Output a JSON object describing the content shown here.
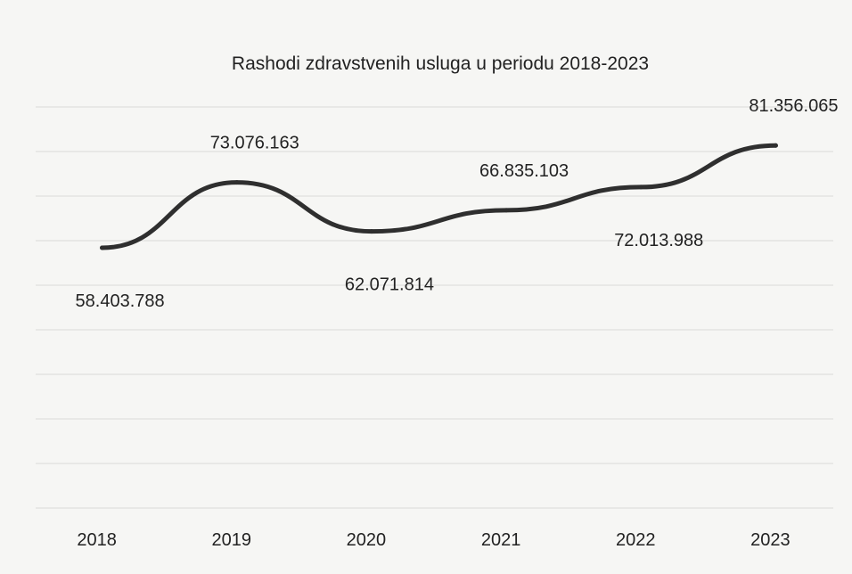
{
  "chart_data": {
    "type": "line",
    "title": "Rashodi zdravstvenih usluga u periodu 2018-2023",
    "xlabel": "",
    "ylabel": "",
    "categories": [
      "2018",
      "2019",
      "2020",
      "2021",
      "2022",
      "2023"
    ],
    "series": [
      {
        "values": [
          58403788,
          73076163,
          62071814,
          66835103,
          72013988,
          81356065
        ],
        "value_labels": [
          "58.403.788",
          "73.076.163",
          "62.071.814",
          "66.835.103",
          "72.013.988",
          "81.356.065"
        ]
      }
    ],
    "ylim": [
      0,
      90000000
    ],
    "grid": true,
    "legend": "none",
    "colors": {
      "line": "#2f2f2f",
      "grid": "#d9d9d9",
      "text": "#222222"
    }
  }
}
